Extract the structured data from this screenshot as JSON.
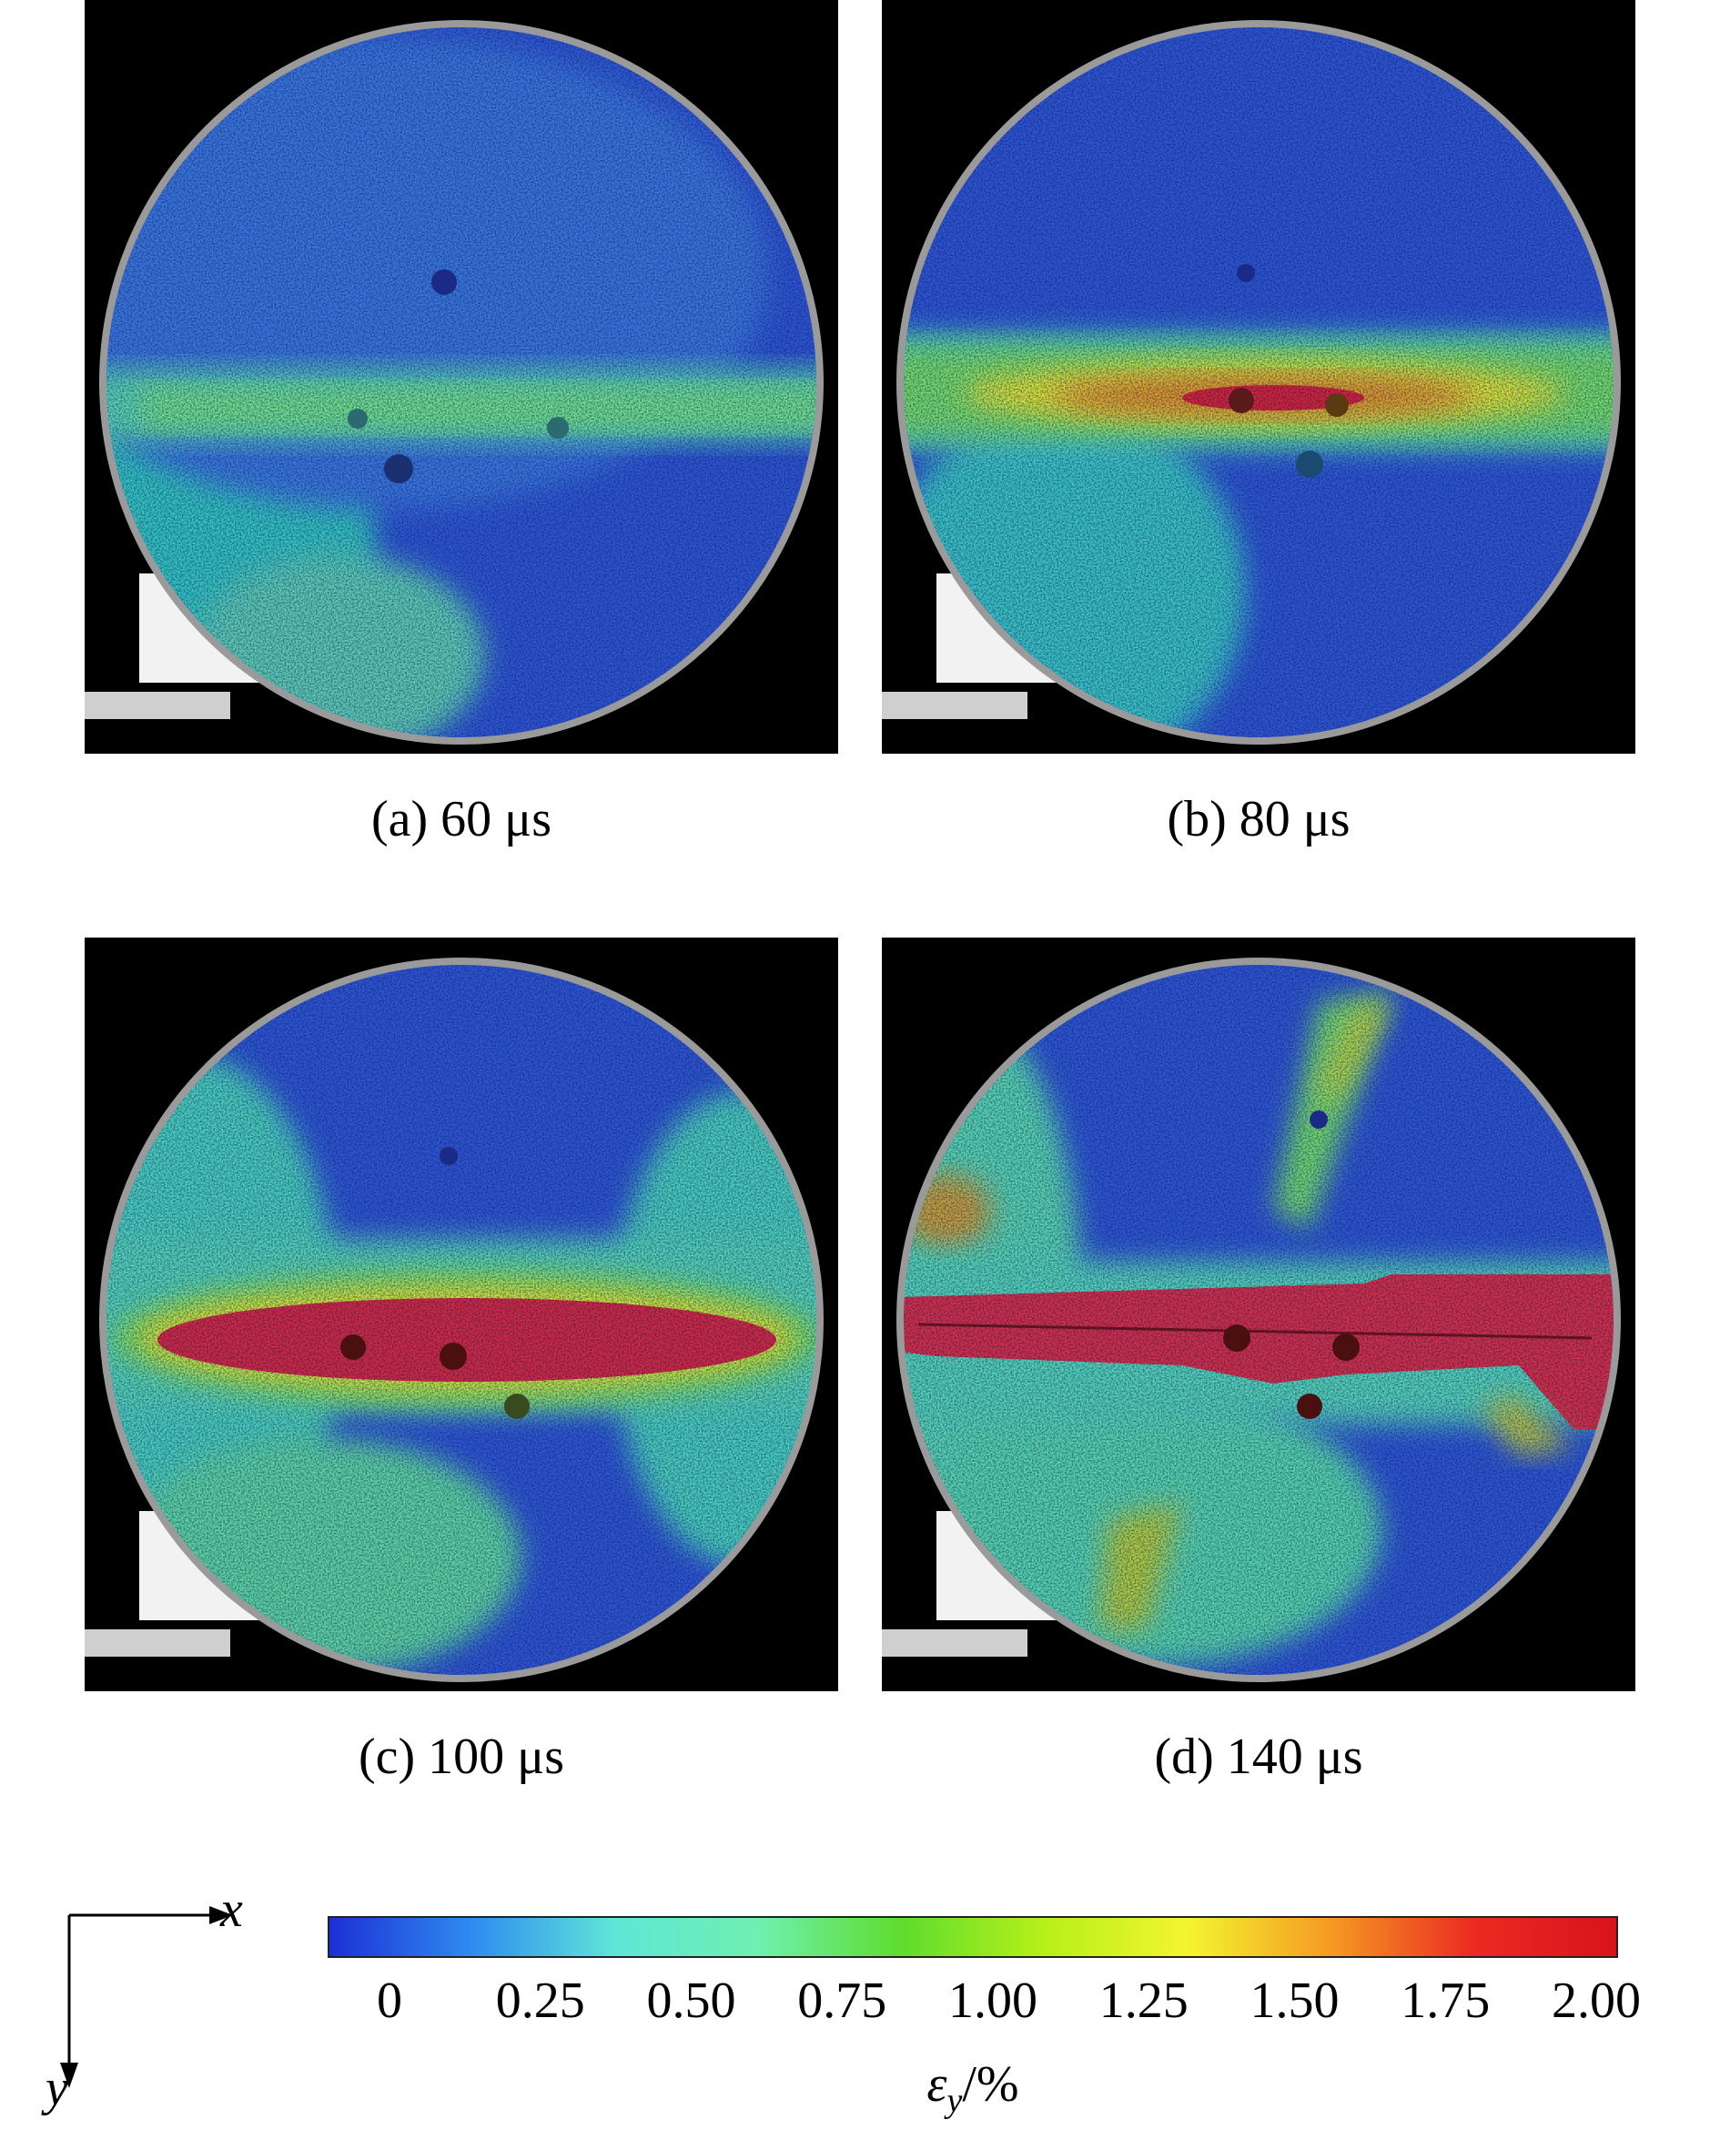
{
  "panels": [
    {
      "id": "a",
      "caption": "(a) 60 μs"
    },
    {
      "id": "b",
      "caption": "(b) 80 μs"
    },
    {
      "id": "c",
      "caption": "(c) 100 μs"
    },
    {
      "id": "d",
      "caption": "(d) 140 μs"
    }
  ],
  "axes": {
    "x": "x",
    "y": "y"
  },
  "colorbar": {
    "ticks": [
      "0",
      "0.25",
      "0.50",
      "0.75",
      "1.00",
      "1.25",
      "1.50",
      "1.75",
      "2.00"
    ],
    "range": [
      0,
      2.0
    ],
    "label_symbol": "ε",
    "label_subscript": "y",
    "label_unit": "/%",
    "colors": [
      "#1d2fd6",
      "#2f8cf0",
      "#5fe6d8",
      "#6ff0b0",
      "#5fdc2e",
      "#b7f018",
      "#f4f530",
      "#f59a22",
      "#ec2a22",
      "#d8131b"
    ]
  }
}
